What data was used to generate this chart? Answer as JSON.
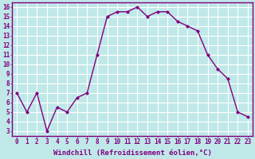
{
  "x": [
    0,
    1,
    2,
    3,
    4,
    5,
    6,
    7,
    8,
    9,
    10,
    11,
    12,
    13,
    14,
    15,
    16,
    17,
    18,
    19,
    20,
    21,
    22,
    23
  ],
  "y": [
    7.0,
    5.0,
    7.0,
    3.0,
    5.5,
    5.0,
    6.5,
    7.0,
    11.0,
    15.0,
    15.5,
    15.5,
    16.0,
    15.0,
    15.5,
    15.5,
    14.5,
    14.0,
    13.5,
    11.0,
    9.5,
    8.5,
    5.0,
    4.5
  ],
  "line_color": "#800080",
  "marker": "D",
  "marker_size": 2.0,
  "bg_color": "#c0e8e8",
  "grid_color": "#ffffff",
  "xlabel": "Windchill (Refroidissement éolien,°C)",
  "xlim": [
    -0.5,
    23.5
  ],
  "ylim": [
    2.5,
    16.5
  ],
  "xticks": [
    0,
    1,
    2,
    3,
    4,
    5,
    6,
    7,
    8,
    9,
    10,
    11,
    12,
    13,
    14,
    15,
    16,
    17,
    18,
    19,
    20,
    21,
    22,
    23
  ],
  "yticks": [
    3,
    4,
    5,
    6,
    7,
    8,
    9,
    10,
    11,
    12,
    13,
    14,
    15,
    16
  ],
  "tick_color": "#800080",
  "label_color": "#800080",
  "label_fontsize": 6.5,
  "tick_fontsize": 5.5,
  "line_width": 1.0,
  "spine_color": "#800080"
}
